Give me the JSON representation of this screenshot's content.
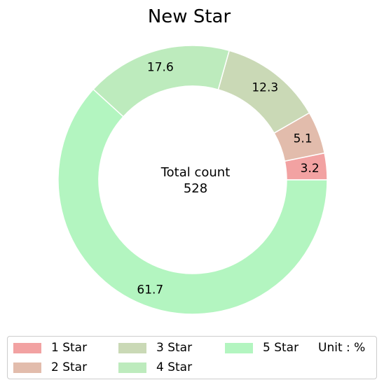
{
  "chart_data": {
    "type": "pie",
    "donut": true,
    "title": "New Star",
    "center_label": [
      "Total count",
      "528"
    ],
    "unit_label": "Unit : %",
    "categories": [
      "1 Star",
      "2 Star",
      "3 Star",
      "4 Star",
      "5 Star"
    ],
    "values": [
      3.2,
      5.1,
      12.3,
      17.6,
      61.7
    ],
    "value_labels": [
      "3.2",
      "5.1",
      "12.3",
      "17.6",
      "61.7"
    ],
    "colors": [
      "#f2a2a2",
      "#e2bcac",
      "#cad9b6",
      "#bdebbd",
      "#b3f5c0"
    ],
    "legend_position": "bottom",
    "start_angle_deg": 0,
    "direction": "counterclockwise"
  }
}
